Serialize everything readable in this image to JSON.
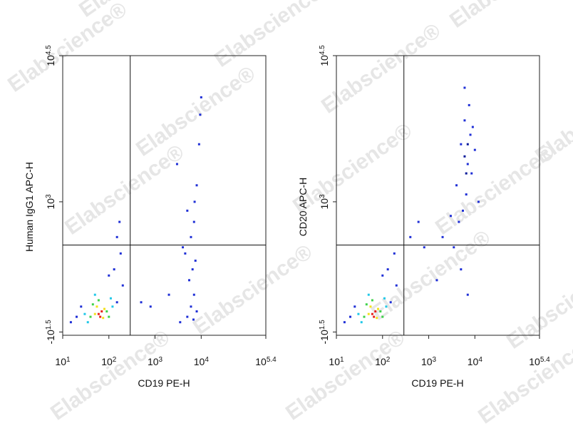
{
  "watermark": "Elabscience®",
  "chart_data": [
    {
      "type": "scatter",
      "xlabel": "CD19 PE-H",
      "ylabel": "Human IgG1 APC-H",
      "xscale": "log",
      "yscale": "symlog",
      "ylinear_width": 75,
      "xlim": [
        10,
        251189
      ],
      "ylim": [
        -40,
        31623
      ],
      "xticks": [
        {
          "value": 10,
          "label": "10",
          "sup": "1"
        },
        {
          "value": 100,
          "label": "10",
          "sup": "2"
        },
        {
          "value": 1000,
          "label": "10",
          "sup": "3"
        },
        {
          "value": 10000,
          "label": "10",
          "sup": "4"
        },
        {
          "value": 251189,
          "label": "10",
          "sup": "5.4"
        }
      ],
      "yticks": [
        {
          "value": -31.6,
          "label": "-10",
          "sup": "1.5"
        },
        {
          "value": 1000,
          "label": "10",
          "sup": "3"
        },
        {
          "value": 31623,
          "label": "10",
          "sup": "4.5"
        }
      ],
      "gates": {
        "x": 290,
        "y": 320
      },
      "series": [
        {
          "color": "#1f2fd6",
          "x": [
            20,
            15,
            150,
            200,
            130,
            180,
            100,
            25,
            5000,
            6000,
            7000,
            8000,
            5500,
            6500,
            7500,
            4000,
            6000,
            7000,
            5000,
            8000,
            3000,
            9000,
            9500,
            10000,
            2000,
            3500,
            800,
            500,
            4500,
            7200,
            6800,
            150,
            170
          ],
          "values": [
            0,
            -10,
            30,
            80,
            150,
            250,
            120,
            20,
            0,
            20,
            50,
            10,
            100,
            150,
            200,
            300,
            400,
            600,
            800,
            1500,
            2500,
            4000,
            8000,
            12000,
            50,
            -10,
            20,
            30,
            250,
            1000,
            -5,
            400,
            600
          ]
        },
        {
          "color": "#20c8e8",
          "x": [
            30,
            120,
            35,
            50,
            110
          ],
          "values": [
            5,
            20,
            -10,
            50,
            40
          ]
        },
        {
          "color": "#3fd24a",
          "x": [
            40,
            90,
            45,
            100,
            60
          ],
          "values": [
            0,
            10,
            25,
            0,
            35
          ]
        },
        {
          "color": "#f2e21c",
          "x": [
            50,
            80,
            55,
            75
          ],
          "values": [
            5,
            15,
            20,
            -2
          ]
        },
        {
          "color": "#e8231c",
          "x": [
            60,
            70,
            65
          ],
          "values": [
            5,
            10,
            0
          ]
        }
      ]
    },
    {
      "type": "scatter",
      "xlabel": "CD19 PE-H",
      "ylabel": "CD20 APC-H",
      "xscale": "log",
      "yscale": "symlog",
      "ylinear_width": 75,
      "xlim": [
        10,
        251189
      ],
      "ylim": [
        -40,
        31623
      ],
      "xticks": [
        {
          "value": 10,
          "label": "10",
          "sup": "1"
        },
        {
          "value": 100,
          "label": "10",
          "sup": "2"
        },
        {
          "value": 1000,
          "label": "10",
          "sup": "3"
        },
        {
          "value": 10000,
          "label": "10",
          "sup": "4"
        },
        {
          "value": 251189,
          "label": "10",
          "sup": "5.4"
        }
      ],
      "yticks": [
        {
          "value": -31.6,
          "label": "-10",
          "sup": "1.5"
        },
        {
          "value": 1000,
          "label": "10",
          "sup": "3"
        },
        {
          "value": 31623,
          "label": "10",
          "sup": "4.5"
        }
      ],
      "gates": {
        "x": 290,
        "y": 320
      },
      "series": [
        {
          "color": "#1f2fd6",
          "x": [
            20,
            15,
            150,
            200,
            130,
            180,
            100,
            25,
            7000,
            5000,
            8000,
            4000,
            9000,
            6500,
            5500,
            7500,
            3000,
            10000,
            6000,
            4500,
            8500,
            3500,
            5000,
            7000,
            2000,
            1500,
            12000,
            400,
            600,
            800,
            6000
          ],
          "values": [
            0,
            -10,
            30,
            80,
            150,
            250,
            120,
            20,
            2500,
            4000,
            5000,
            1500,
            6000,
            1200,
            800,
            10000,
            700,
            3500,
            15000,
            600,
            2000,
            300,
            150,
            50,
            400,
            100,
            1000,
            400,
            600,
            300,
            7000
          ]
        },
        {
          "color": "#0a1a9a",
          "x": [
            6000,
            7000,
            6500
          ],
          "values": [
            3000,
            4000,
            2000
          ]
        },
        {
          "color": "#20c8e8",
          "x": [
            30,
            120,
            35,
            50,
            110
          ],
          "values": [
            5,
            20,
            -10,
            50,
            40
          ]
        },
        {
          "color": "#3fd24a",
          "x": [
            40,
            90,
            45,
            100,
            60
          ],
          "values": [
            0,
            10,
            25,
            0,
            35
          ]
        },
        {
          "color": "#f2e21c",
          "x": [
            50,
            80,
            55,
            75
          ],
          "values": [
            5,
            15,
            20,
            -2
          ]
        },
        {
          "color": "#e8231c",
          "x": [
            60,
            70,
            65
          ],
          "values": [
            5,
            10,
            0
          ]
        }
      ]
    }
  ]
}
